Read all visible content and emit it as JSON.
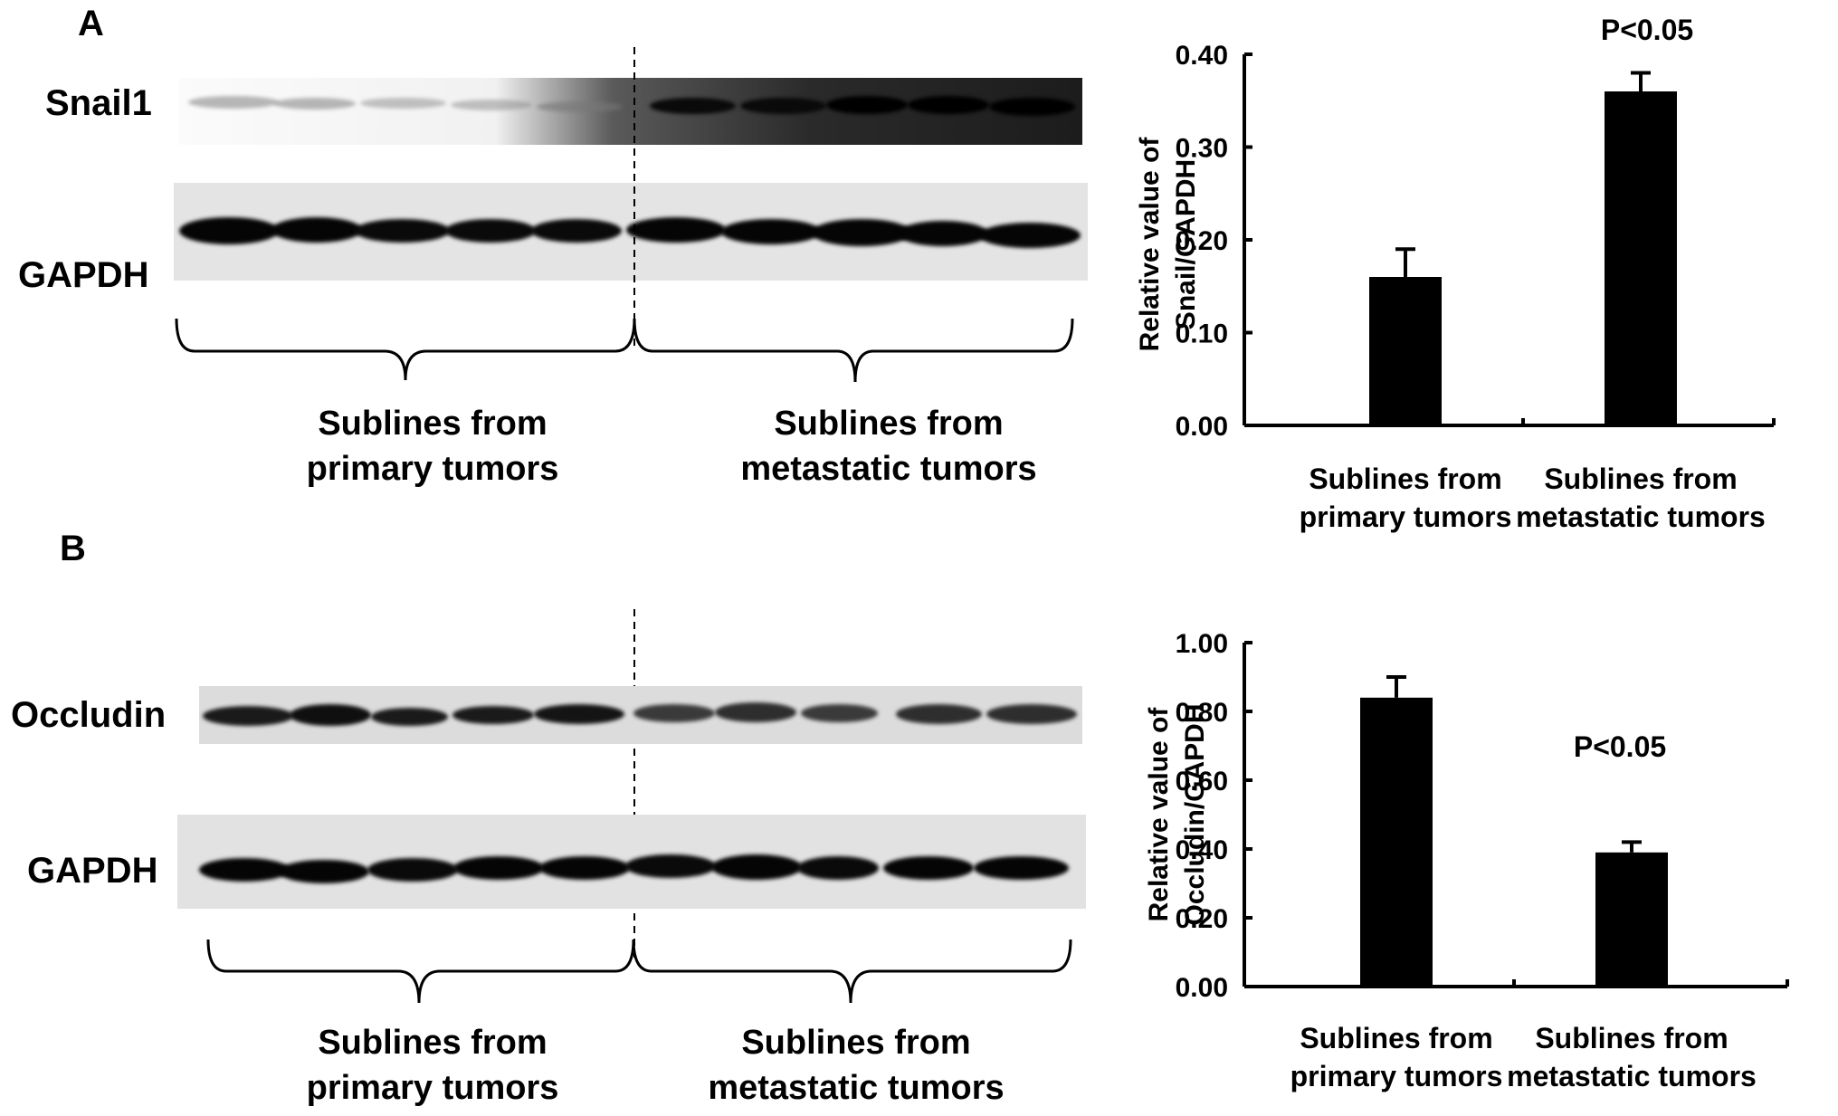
{
  "panels": [
    {
      "letter": "A",
      "blot": {
        "target_label": "Snail1",
        "control_label": "GAPDH",
        "groups": [
          "Sublines from\nprimary tumors",
          "Sublines from\nmetastatic tumors"
        ]
      }
    },
    {
      "letter": "B",
      "blot": {
        "target_label": "Occludin",
        "control_label": "GAPDH",
        "groups": [
          "Sublines from\nprimary tumors",
          "Sublines from\nmetastatic tumors"
        ]
      }
    }
  ],
  "chart_data": [
    {
      "type": "bar",
      "categories": [
        "Sublines from\nprimary tumors",
        "Sublines from\nmetastatic tumors"
      ],
      "values": [
        0.16,
        0.36
      ],
      "errors": [
        0.03,
        0.02
      ],
      "ylabel": "Relative value of\nSnail/GAPDH",
      "ylim": [
        0,
        0.4
      ],
      "yticks": [
        "0.00",
        "0.10",
        "0.20",
        "0.30",
        "0.40"
      ],
      "annotation": "P<0.05",
      "bar_color": "#000000",
      "grid": false
    },
    {
      "type": "bar",
      "categories": [
        "Sublines from\nprimary tumors",
        "Sublines from\nmetastatic tumors"
      ],
      "values": [
        0.84,
        0.39
      ],
      "errors": [
        0.06,
        0.03
      ],
      "ylabel": "Relative value of\nOccludin/GAPDH",
      "ylim": [
        0,
        1.0
      ],
      "yticks": [
        "0.00",
        "0.20",
        "0.40",
        "0.60",
        "0.80",
        "1.00"
      ],
      "annotation": "P<0.05",
      "bar_color": "#000000",
      "grid": false
    }
  ]
}
